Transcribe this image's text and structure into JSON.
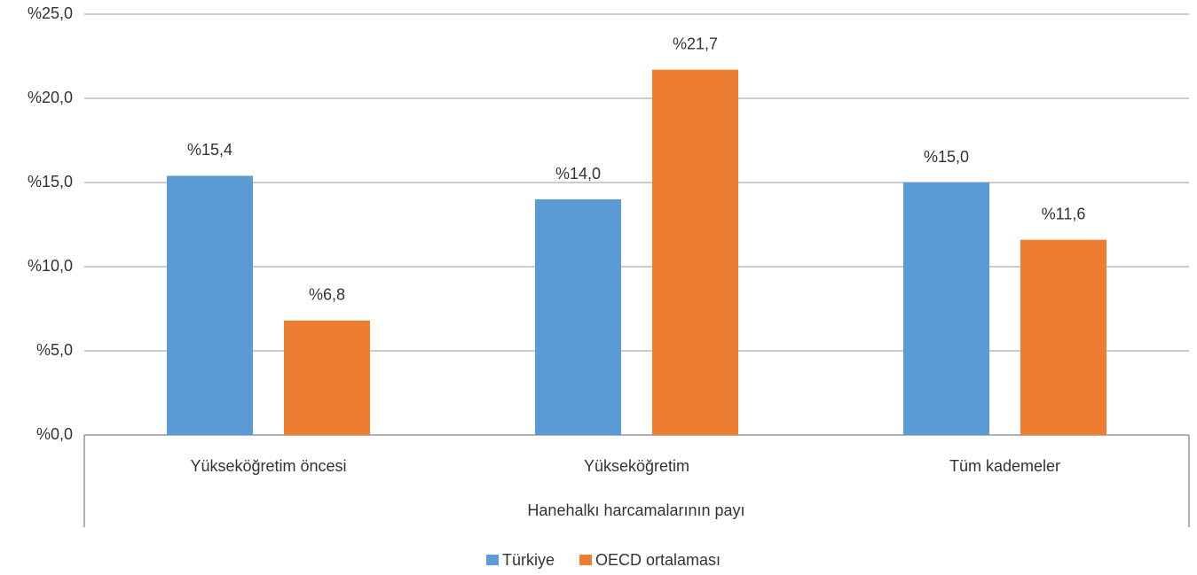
{
  "chart_data": {
    "type": "bar",
    "x_label": "Hanehalkı harcamalarının payı",
    "categories": [
      "Yükseköğretim öncesi",
      "Yükseköğretim",
      "Tüm kademeler"
    ],
    "series": [
      {
        "name": "Türkiye",
        "color": "#5b9bd5",
        "values": [
          15.4,
          14.0,
          15.0
        ],
        "value_labels": [
          "%15,4",
          "%14,0",
          "%15,0"
        ]
      },
      {
        "name": "OECD ortalaması",
        "color": "#ed7d31",
        "values": [
          6.8,
          21.7,
          11.6
        ],
        "value_labels": [
          "%6,8",
          "%21,7",
          "%11,6"
        ]
      }
    ],
    "ylim": [
      0,
      25
    ],
    "yticks": [
      {
        "value": 0,
        "label": "%0,0"
      },
      {
        "value": 5,
        "label": "%5,0"
      },
      {
        "value": 10,
        "label": "%10,0"
      },
      {
        "value": 15,
        "label": "%15,0"
      },
      {
        "value": 20,
        "label": "%20,0"
      },
      {
        "value": 25,
        "label": "%25,0"
      }
    ],
    "grid": true
  }
}
